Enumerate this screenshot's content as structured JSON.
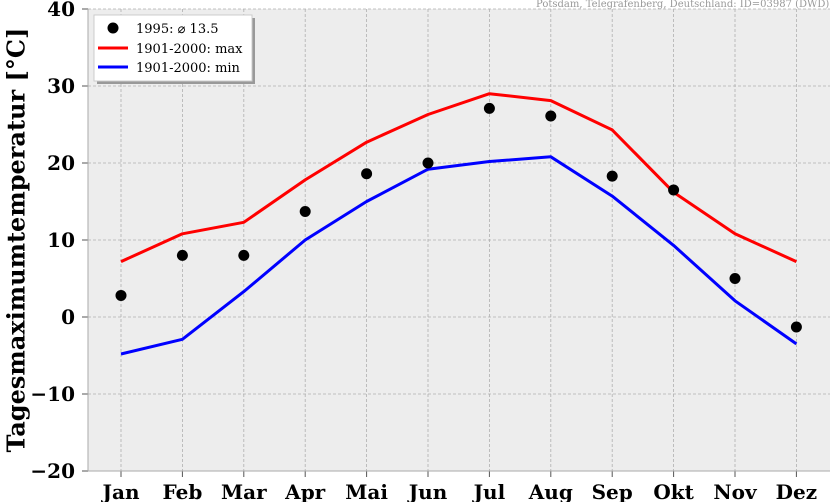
{
  "chart_data": {
    "type": "line",
    "source_note": "Potsdam, Telegrafenberg, Deutschland: ID=03987 (DWD)",
    "xlabel": "",
    "ylabel": "Tagesmaximumtemperatur [°C]",
    "categories": [
      "Jan",
      "Feb",
      "Mar",
      "Apr",
      "Mai",
      "Jun",
      "Jul",
      "Aug",
      "Sep",
      "Okt",
      "Nov",
      "Dez"
    ],
    "ylim": [
      -20,
      40
    ],
    "yticks": [
      "−20",
      "−10",
      "0",
      "10",
      "20",
      "30",
      "40"
    ],
    "grid": true,
    "legend_position": "top-left",
    "series": [
      {
        "name": "1995: ⌀ 13.5",
        "kind": "scatter",
        "color": "#000000",
        "values": [
          2.8,
          8.0,
          8.0,
          13.7,
          18.6,
          20.0,
          27.1,
          26.1,
          18.3,
          16.5,
          5.0,
          -1.3
        ]
      },
      {
        "name": "1901-2000: max",
        "kind": "line",
        "color": "#ff0000",
        "values": [
          7.2,
          10.8,
          12.3,
          17.8,
          22.7,
          26.3,
          29.0,
          28.1,
          24.3,
          16.2,
          10.8,
          7.2
        ]
      },
      {
        "name": "1901-2000: min",
        "kind": "line",
        "color": "#0000ff",
        "values": [
          -4.8,
          -2.9,
          3.3,
          10.0,
          15.0,
          19.2,
          20.2,
          20.8,
          15.7,
          9.3,
          2.1,
          -3.5
        ]
      }
    ]
  }
}
